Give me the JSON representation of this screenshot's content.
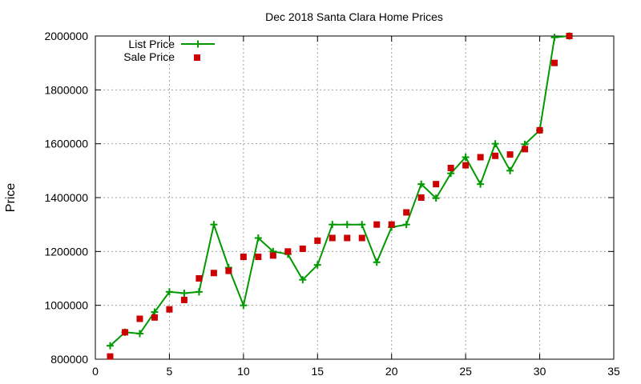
{
  "chart_data": {
    "type": "line",
    "title": "Dec 2018 Santa Clara Home Prices",
    "xlabel": "",
    "ylabel": "Price",
    "xlim": [
      0,
      35
    ],
    "ylim": [
      800000,
      2000000
    ],
    "xticks": [
      0,
      5,
      10,
      15,
      20,
      25,
      30,
      35
    ],
    "yticks": [
      800000,
      1000000,
      1200000,
      1400000,
      1600000,
      1800000,
      2000000
    ],
    "grid": true,
    "legend_position": "top-left",
    "series": [
      {
        "name": "List Price",
        "style": "line-with-plus-markers",
        "color": "#009900",
        "x": [
          1,
          2,
          3,
          4,
          5,
          6,
          7,
          8,
          9,
          10,
          11,
          12,
          13,
          14,
          15,
          16,
          17,
          18,
          19,
          20,
          21,
          22,
          23,
          24,
          25,
          26,
          27,
          28,
          29,
          30,
          31,
          32
        ],
        "y": [
          850000,
          900000,
          895000,
          975000,
          1050000,
          1045000,
          1050000,
          1300000,
          1140000,
          1000000,
          1250000,
          1200000,
          1190000,
          1095000,
          1150000,
          1300000,
          1300000,
          1300000,
          1160000,
          1290000,
          1300000,
          1450000,
          1398000,
          1490000,
          1550000,
          1450000,
          1600000,
          1500000,
          1598000,
          1650000,
          1995000,
          2000000
        ]
      },
      {
        "name": "Sale Price",
        "style": "square-markers",
        "color": "#cc0000",
        "x": [
          1,
          2,
          3,
          4,
          5,
          6,
          7,
          8,
          9,
          10,
          11,
          12,
          13,
          14,
          15,
          16,
          17,
          18,
          19,
          20,
          21,
          22,
          23,
          24,
          25,
          26,
          27,
          28,
          29,
          30,
          31,
          32
        ],
        "y": [
          810000,
          900000,
          950000,
          955000,
          985000,
          1020000,
          1100000,
          1120000,
          1128000,
          1180000,
          1180000,
          1185000,
          1200000,
          1210000,
          1240000,
          1250000,
          1250000,
          1250000,
          1300000,
          1300000,
          1345000,
          1400000,
          1450000,
          1510000,
          1520000,
          1550000,
          1555000,
          1560000,
          1580000,
          1650000,
          1900000,
          2000000
        ]
      }
    ]
  }
}
